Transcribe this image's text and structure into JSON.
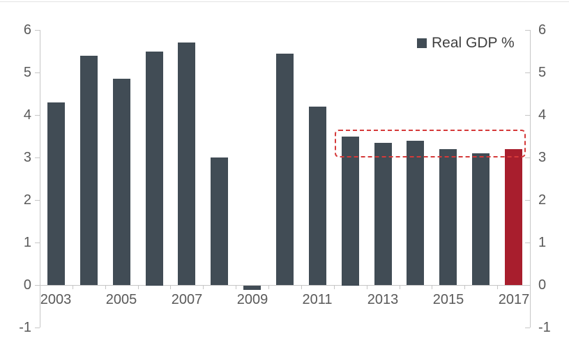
{
  "legend": {
    "label": "Real GDP %",
    "marker_color": "#414c55"
  },
  "colors": {
    "bar": "#414c55",
    "highlight_bar": "#a81e2d",
    "highlight_box_border": "#d53a3a",
    "axis": "#c6c6c6",
    "tick_label": "#595959",
    "legend_text": "#3f3f3f",
    "background": "#ffffff"
  },
  "axes": {
    "y_tick_labels": [
      "6",
      "5",
      "4",
      "3",
      "2",
      "1",
      "0",
      "-1"
    ],
    "y_tick_values": [
      6,
      5,
      4,
      3,
      2,
      1,
      0,
      -1
    ],
    "x_tick_labels": [
      "2003",
      "2005",
      "2007",
      "2009",
      "2011",
      "2013",
      "2015",
      "2017"
    ]
  },
  "chart_data": {
    "type": "bar",
    "title": "",
    "xlabel": "",
    "ylabel": "",
    "categories": [
      2003,
      2004,
      2005,
      2006,
      2007,
      2008,
      2009,
      2010,
      2011,
      2012,
      2013,
      2014,
      2015,
      2016,
      2017
    ],
    "series": [
      {
        "name": "Real GDP %",
        "values": [
          4.3,
          5.4,
          4.85,
          5.5,
          5.7,
          3.0,
          -0.1,
          5.45,
          4.2,
          3.5,
          3.35,
          3.4,
          3.2,
          3.1,
          3.2
        ]
      }
    ],
    "ylim": [
      -1,
      6
    ],
    "y_tick_step": 1,
    "grid": false,
    "legend_position": "top-right",
    "bar_color": "#414c55",
    "highlighted_category": 2017,
    "highlighted_bar_color": "#a81e2d",
    "annotation": {
      "type": "dashed-box",
      "category_range": [
        2012,
        2017
      ],
      "value_range": [
        3.0,
        3.65
      ],
      "border_color": "#d53a3a"
    }
  }
}
